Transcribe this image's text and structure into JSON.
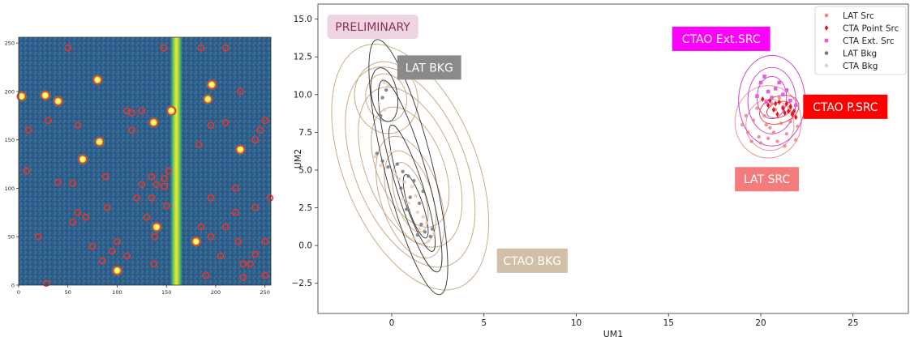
{
  "chart_data": [
    {
      "type": "image",
      "xticks": [
        "0",
        "50",
        "100",
        "150",
        "200",
        "250"
      ],
      "yticks": [
        "0",
        "50",
        "100",
        "150",
        "200",
        "250"
      ],
      "xlim": [
        0,
        256
      ],
      "ylim": [
        0,
        256
      ],
      "colormap": "viridis",
      "stream_x": 160,
      "marker_color": "#e8362a",
      "sources": [
        {
          "x": 3,
          "y": 195,
          "bright": true
        },
        {
          "x": 10,
          "y": 160,
          "bright": false
        },
        {
          "x": 27,
          "y": 196,
          "bright": true
        },
        {
          "x": 40,
          "y": 190,
          "bright": true
        },
        {
          "x": 50,
          "y": 245,
          "bright": false
        },
        {
          "x": 30,
          "y": 170,
          "bright": false
        },
        {
          "x": 80,
          "y": 212,
          "bright": true
        },
        {
          "x": 65,
          "y": 130,
          "bright": true
        },
        {
          "x": 82,
          "y": 148,
          "bright": true
        },
        {
          "x": 60,
          "y": 165,
          "bright": false
        },
        {
          "x": 110,
          "y": 180,
          "bright": false
        },
        {
          "x": 115,
          "y": 178,
          "bright": false
        },
        {
          "x": 115,
          "y": 160,
          "bright": false
        },
        {
          "x": 125,
          "y": 180,
          "bright": false
        },
        {
          "x": 137,
          "y": 168,
          "bright": true
        },
        {
          "x": 155,
          "y": 180,
          "bright": true
        },
        {
          "x": 147,
          "y": 245,
          "bright": false
        },
        {
          "x": 185,
          "y": 245,
          "bright": false
        },
        {
          "x": 210,
          "y": 245,
          "bright": false
        },
        {
          "x": 196,
          "y": 207,
          "bright": true
        },
        {
          "x": 192,
          "y": 192,
          "bright": true
        },
        {
          "x": 225,
          "y": 200,
          "bright": false
        },
        {
          "x": 195,
          "y": 165,
          "bright": false
        },
        {
          "x": 210,
          "y": 168,
          "bright": false
        },
        {
          "x": 225,
          "y": 140,
          "bright": true
        },
        {
          "x": 240,
          "y": 150,
          "bright": false
        },
        {
          "x": 245,
          "y": 160,
          "bright": false
        },
        {
          "x": 250,
          "y": 170,
          "bright": false
        },
        {
          "x": 183,
          "y": 145,
          "bright": false
        },
        {
          "x": 8,
          "y": 118,
          "bright": false
        },
        {
          "x": 40,
          "y": 106,
          "bright": false
        },
        {
          "x": 55,
          "y": 105,
          "bright": false
        },
        {
          "x": 88,
          "y": 112,
          "bright": false
        },
        {
          "x": 125,
          "y": 104,
          "bright": false
        },
        {
          "x": 140,
          "y": 104,
          "bright": false
        },
        {
          "x": 135,
          "y": 112,
          "bright": false
        },
        {
          "x": 148,
          "y": 110,
          "bright": false
        },
        {
          "x": 152,
          "y": 118,
          "bright": false
        },
        {
          "x": 148,
          "y": 102,
          "bright": false
        },
        {
          "x": 120,
          "y": 90,
          "bright": false
        },
        {
          "x": 135,
          "y": 90,
          "bright": false
        },
        {
          "x": 150,
          "y": 82,
          "bright": false
        },
        {
          "x": 130,
          "y": 70,
          "bright": false
        },
        {
          "x": 140,
          "y": 60,
          "bright": true
        },
        {
          "x": 138,
          "y": 50,
          "bright": false
        },
        {
          "x": 60,
          "y": 75,
          "bright": false
        },
        {
          "x": 68,
          "y": 70,
          "bright": false
        },
        {
          "x": 90,
          "y": 80,
          "bright": false
        },
        {
          "x": 55,
          "y": 65,
          "bright": false
        },
        {
          "x": 20,
          "y": 50,
          "bright": false
        },
        {
          "x": 75,
          "y": 40,
          "bright": false
        },
        {
          "x": 100,
          "y": 45,
          "bright": false
        },
        {
          "x": 110,
          "y": 30,
          "bright": false
        },
        {
          "x": 137,
          "y": 22,
          "bright": false
        },
        {
          "x": 100,
          "y": 15,
          "bright": true
        },
        {
          "x": 28,
          "y": 2,
          "bright": false
        },
        {
          "x": 180,
          "y": 45,
          "bright": true
        },
        {
          "x": 195,
          "y": 50,
          "bright": false
        },
        {
          "x": 205,
          "y": 30,
          "bright": false
        },
        {
          "x": 223,
          "y": 45,
          "bright": false
        },
        {
          "x": 235,
          "y": 22,
          "bright": false
        },
        {
          "x": 240,
          "y": 32,
          "bright": false
        },
        {
          "x": 250,
          "y": 45,
          "bright": false
        },
        {
          "x": 250,
          "y": 10,
          "bright": false
        },
        {
          "x": 228,
          "y": 22,
          "bright": false
        },
        {
          "x": 195,
          "y": 90,
          "bright": false
        },
        {
          "x": 220,
          "y": 100,
          "bright": false
        },
        {
          "x": 220,
          "y": 75,
          "bright": false
        },
        {
          "x": 240,
          "y": 80,
          "bright": false
        },
        {
          "x": 255,
          "y": 90,
          "bright": false
        },
        {
          "x": 185,
          "y": 60,
          "bright": false
        },
        {
          "x": 210,
          "y": 60,
          "bright": false
        },
        {
          "x": 190,
          "y": 10,
          "bright": false
        },
        {
          "x": 228,
          "y": 8,
          "bright": false
        },
        {
          "x": 95,
          "y": 35,
          "bright": false
        },
        {
          "x": 85,
          "y": 25,
          "bright": false
        }
      ]
    },
    {
      "type": "scatter",
      "xlabel": "UM1",
      "ylabel": "UM2",
      "xlim": [
        -4,
        28
      ],
      "ylim": [
        -4.5,
        16
      ],
      "xticks": [
        0,
        5,
        10,
        15,
        20,
        25
      ],
      "yticks": [
        -2.5,
        0.0,
        2.5,
        5.0,
        7.5,
        10.0,
        12.5,
        15.0
      ],
      "ytick_labels": [
        "−2.5",
        "0.0",
        "2.5",
        "5.0",
        "7.5",
        "10.0",
        "12.5",
        "15.0"
      ],
      "legend_position": "top-right",
      "legend": [
        {
          "label": "LAT Src",
          "color": "#f08080",
          "marker": "dot"
        },
        {
          "label": "CTA Point Src",
          "color": "#e8141e",
          "marker": "diamond"
        },
        {
          "label": "CTA Ext. Src",
          "color": "#e060e0",
          "marker": "square"
        },
        {
          "label": "LAT Bkg",
          "color": "#777777",
          "marker": "dot"
        },
        {
          "label": "CTA Bkg",
          "color": "#e6cdb8",
          "marker": "dot"
        }
      ],
      "series": [
        {
          "name": "LAT Src",
          "color": "#f08080",
          "points": [
            [
              19.0,
              8.0
            ],
            [
              19.3,
              7.5
            ],
            [
              19.6,
              8.3
            ],
            [
              19.9,
              7.2
            ],
            [
              20.2,
              8.6
            ],
            [
              20.5,
              7.8
            ],
            [
              20.8,
              9.0
            ],
            [
              21.1,
              8.1
            ],
            [
              21.4,
              7.4
            ],
            [
              21.7,
              8.8
            ],
            [
              22.0,
              7.9
            ],
            [
              20.0,
              6.8
            ],
            [
              20.4,
              7.1
            ],
            [
              20.9,
              6.9
            ],
            [
              21.3,
              6.6
            ],
            [
              19.5,
              6.9
            ],
            [
              20.6,
              9.4
            ],
            [
              21.0,
              9.8
            ],
            [
              19.8,
              9.1
            ],
            [
              21.6,
              8.2
            ],
            [
              20.3,
              8.0
            ],
            [
              19.2,
              8.6
            ],
            [
              21.9,
              7.0
            ],
            [
              20.7,
              7.5
            ],
            [
              21.2,
              9.2
            ]
          ]
        },
        {
          "name": "CTA Point Src",
          "color": "#e8141e",
          "points": [
            [
              20.1,
              9.7
            ],
            [
              20.4,
              9.3
            ],
            [
              20.7,
              9.0
            ],
            [
              21.0,
              9.5
            ],
            [
              21.2,
              9.1
            ],
            [
              21.5,
              8.9
            ],
            [
              21.7,
              8.7
            ],
            [
              21.9,
              8.5
            ],
            [
              20.8,
              9.4
            ],
            [
              21.3,
              8.8
            ],
            [
              20.5,
              9.6
            ],
            [
              21.6,
              9.2
            ],
            [
              20.9,
              8.7
            ],
            [
              21.4,
              9.4
            ],
            [
              21.8,
              8.9
            ]
          ]
        },
        {
          "name": "CTA Ext. Src",
          "color": "#e060e0",
          "points": [
            [
              20.2,
              11.2
            ],
            [
              20.0,
              10.8
            ],
            [
              20.4,
              10.2
            ],
            [
              20.8,
              10.4
            ],
            [
              21.2,
              10.0
            ],
            [
              21.6,
              9.6
            ],
            [
              19.8,
              9.9
            ],
            [
              20.6,
              9.8
            ],
            [
              21.0,
              10.8
            ],
            [
              21.9,
              9.3
            ],
            [
              20.3,
              9.5
            ],
            [
              21.4,
              10.3
            ]
          ]
        },
        {
          "name": "LAT Bkg",
          "color": "#777777",
          "points": [
            [
              -0.5,
              9.8
            ],
            [
              -0.3,
              10.3
            ],
            [
              -0.6,
              8.6
            ],
            [
              -0.8,
              6.1
            ],
            [
              -0.5,
              5.6
            ],
            [
              0.3,
              5.4
            ],
            [
              0.6,
              4.9
            ],
            [
              0.9,
              4.6
            ],
            [
              1.2,
              4.3
            ],
            [
              1.0,
              3.2
            ],
            [
              1.5,
              2.8
            ],
            [
              1.6,
              1.4
            ],
            [
              1.8,
              0.9
            ],
            [
              2.1,
              0.6
            ],
            [
              1.4,
              0.7
            ],
            [
              0.8,
              2.4
            ],
            [
              -0.2,
              5.2
            ],
            [
              1.7,
              3.6
            ],
            [
              2.2,
              1.1
            ],
            [
              0.5,
              3.8
            ]
          ]
        },
        {
          "name": "CTA Bkg",
          "color": "#e6cdb8",
          "points": [
            [
              -0.4,
              10.8
            ],
            [
              -0.2,
              10.6
            ],
            [
              -0.7,
              9.4
            ],
            [
              -0.4,
              9.0
            ],
            [
              -0.9,
              5.9
            ],
            [
              -0.6,
              5.3
            ],
            [
              0.1,
              5.0
            ],
            [
              0.4,
              4.4
            ],
            [
              0.7,
              4.2
            ],
            [
              1.1,
              3.9
            ],
            [
              1.3,
              3.3
            ],
            [
              0.9,
              2.8
            ],
            [
              1.4,
              2.2
            ],
            [
              1.7,
              1.9
            ],
            [
              1.5,
              1.1
            ],
            [
              2.0,
              0.3
            ],
            [
              1.2,
              0.5
            ],
            [
              0.2,
              4.7
            ],
            [
              1.9,
              1.5
            ],
            [
              0.6,
              3.1
            ],
            [
              -0.1,
              6.2
            ],
            [
              2.3,
              0.8
            ]
          ]
        }
      ],
      "annotations": [
        {
          "text": "PRELIMINARY",
          "x": -3.5,
          "y": 15.3,
          "bg": "#efd5e2",
          "color": "#8b2d5e"
        },
        {
          "text": "LAT BKG",
          "x": 0.3,
          "y": 12.6,
          "bg": "#8a8a8a",
          "color": "#ffffff"
        },
        {
          "text": "CTAO BKG",
          "x": 5.7,
          "y": -0.2,
          "bg": "#d2bfa7",
          "color": "#ffffff"
        },
        {
          "text": "CTAO Ext.SRC",
          "x": 15.2,
          "y": 14.5,
          "bg": "#ff00ff",
          "color": "#ffffff"
        },
        {
          "text": "CTAO P.SRC",
          "x": 22.3,
          "y": 10.0,
          "bg": "#ff0000",
          "color": "#ffffff"
        },
        {
          "text": "LAT SRC",
          "x": 18.6,
          "y": 5.2,
          "bg": "#f47b7b",
          "color": "#ffffff"
        }
      ]
    }
  ]
}
